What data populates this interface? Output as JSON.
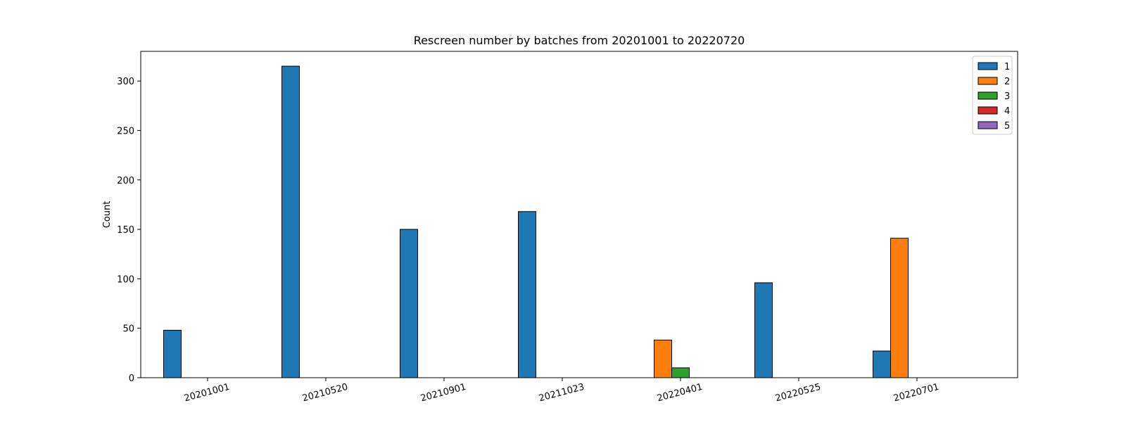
{
  "chart_data": {
    "type": "bar",
    "title": "Rescreen number  by batches from 20201001 to 20220720",
    "xlabel": "",
    "ylabel": "Count",
    "categories": [
      "20201001",
      "20210520",
      "20210901",
      "20211023",
      "20220401",
      "20220525",
      "20220701"
    ],
    "series": [
      {
        "name": "1",
        "color": "#1f77b4",
        "values": [
          48,
          315,
          150,
          168,
          0,
          96,
          27
        ]
      },
      {
        "name": "2",
        "color": "#ff7f0e",
        "values": [
          0,
          0,
          0,
          0,
          38,
          0,
          141
        ]
      },
      {
        "name": "3",
        "color": "#2ca02c",
        "values": [
          0,
          0,
          0,
          0,
          10,
          0,
          0
        ]
      },
      {
        "name": "4",
        "color": "#d62728",
        "values": [
          0,
          0,
          0,
          0,
          0,
          0,
          0
        ]
      },
      {
        "name": "5",
        "color": "#9467bd",
        "values": [
          0,
          0,
          0,
          0,
          0,
          0,
          0
        ]
      }
    ],
    "ylim": [
      0,
      330
    ],
    "yticks": [
      0,
      50,
      100,
      150,
      200,
      250,
      300
    ],
    "grid": false,
    "legend_position": "top-right",
    "xtick_rotation": -15
  }
}
